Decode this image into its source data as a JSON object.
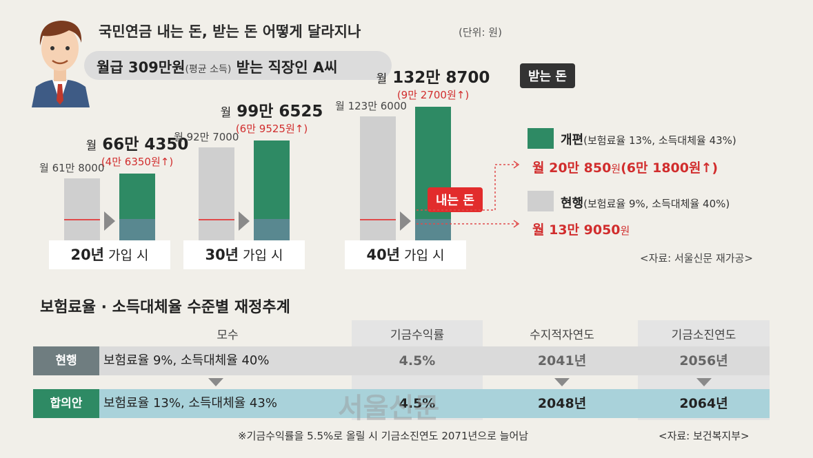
{
  "header": {
    "title": "국민연금 내는 돈, 받는 돈 어떻게 달라지나",
    "unit": "(단위: 원)",
    "subject_main": "월급 309만원",
    "subject_note": "(평균 소득)",
    "subject_rest": " 받는 직장인 A씨",
    "tag_receive": "받는 돈",
    "tag_pay": "내는 돈"
  },
  "chart_data": {
    "type": "bar",
    "title": "국민연금 내는 돈, 받는 돈 어떻게 달라지나",
    "unit": "원",
    "categories": [
      "20년 가입 시",
      "30년 가입 시",
      "40년 가입 시"
    ],
    "series": [
      {
        "name": "현행",
        "values": [
          618000,
          927000,
          1236000
        ]
      },
      {
        "name": "개편",
        "values": [
          664350,
          996525,
          1328700
        ]
      }
    ],
    "increase": [
      46350,
      69525,
      92700
    ],
    "labels": {
      "current": [
        "월 61만 8000",
        "월 92만 7000",
        "월 123만 6000"
      ],
      "new_prefix": [
        "월",
        "월",
        "월"
      ],
      "new": [
        "66만 4350",
        "99만 6525",
        "132만 8700"
      ],
      "increase": [
        "(4만 6350원↑)",
        "(6만 9525원↑)",
        "(9만 2700원↑)"
      ],
      "period_bold": [
        "20년",
        "30년",
        "40년"
      ],
      "period_rest": [
        " 가입 시",
        " 가입 시",
        " 가입 시"
      ]
    },
    "ylim": [
      0,
      1400000
    ]
  },
  "legend": {
    "new_name": "개편",
    "new_note": "(보험료율 13%, 소득대체율 43%)",
    "new_pay": "월 20만 850",
    "new_pay_unit": "원",
    "new_pay_inc": "(6만 1800원↑)",
    "cur_name": "현행",
    "cur_note": "(보험료율 9%, 소득대체율 40%)",
    "cur_pay": "월 13만 9050",
    "cur_pay_unit": "원",
    "source": "<자료: 서울신문 재가공>"
  },
  "table": {
    "title": "보험료율 · 소득대체율 수준별 재정추계",
    "headers": [
      "모수",
      "기금수익률",
      "수지적자연도",
      "기금소진연도"
    ],
    "rows": [
      {
        "name": "현행",
        "params": "보험료율 9%, 소득대체율 40%",
        "return": "4.5%",
        "deficit": "2041년",
        "depletion": "2056년"
      },
      {
        "name": "합의안",
        "params": "보험료율 13%, 소득대체율 43%",
        "return": "4.5%",
        "deficit": "2048년",
        "depletion": "2064년"
      }
    ],
    "footnote": "※기금수익률을 5.5%로 올릴 시 기금소진연도 2071년으로 늘어남",
    "source": "<자료: 보건복지부>"
  },
  "watermark": "서울신문",
  "colors": {
    "new": "#2e8a64",
    "current": "#cfcfcf",
    "accent_red": "#e22c2c",
    "paid": "#5d8894"
  }
}
